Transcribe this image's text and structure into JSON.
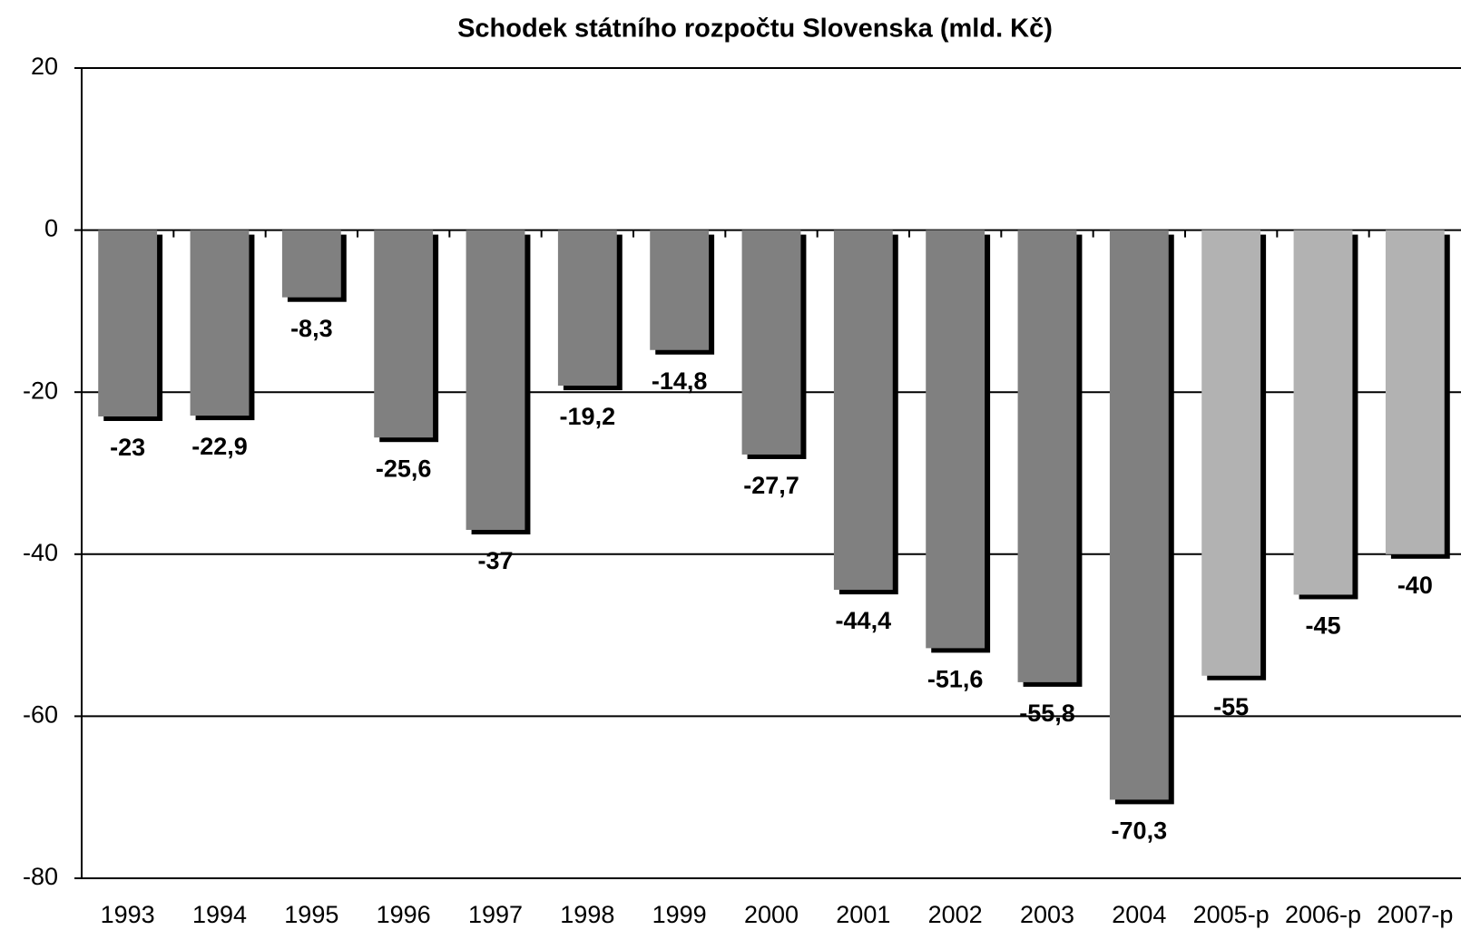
{
  "chart_data": {
    "type": "bar",
    "title": "Schodek státního rozpočtu Slovenska (mld. Kč)",
    "categories": [
      "1993",
      "1994",
      "1995",
      "1996",
      "1997",
      "1998",
      "1999",
      "2000",
      "2001",
      "2002",
      "2003",
      "2004",
      "2005-p",
      "2006-p",
      "2007-p"
    ],
    "values": [
      -23,
      -22.9,
      -8.3,
      -25.6,
      -37,
      -19.2,
      -14.8,
      -27.7,
      -44.4,
      -51.6,
      -55.8,
      -70.3,
      -55,
      -45,
      -40
    ],
    "value_labels": [
      "-23",
      "-22,9",
      "-8,3",
      "-25,6",
      "-37",
      "-19,2",
      "-14,8",
      "-27,7",
      "-44,4",
      "-51,6",
      "-55,8",
      "-70,3",
      "-55",
      "-45",
      "-40"
    ],
    "colors": [
      "#808080",
      "#808080",
      "#808080",
      "#808080",
      "#808080",
      "#808080",
      "#808080",
      "#808080",
      "#808080",
      "#808080",
      "#808080",
      "#808080",
      "#b2b2b2",
      "#b2b2b2",
      "#b2b2b2"
    ],
    "ylim": [
      -80,
      20
    ],
    "yticks": [
      -80,
      -60,
      -40,
      -20,
      0,
      20
    ],
    "grid": true
  }
}
